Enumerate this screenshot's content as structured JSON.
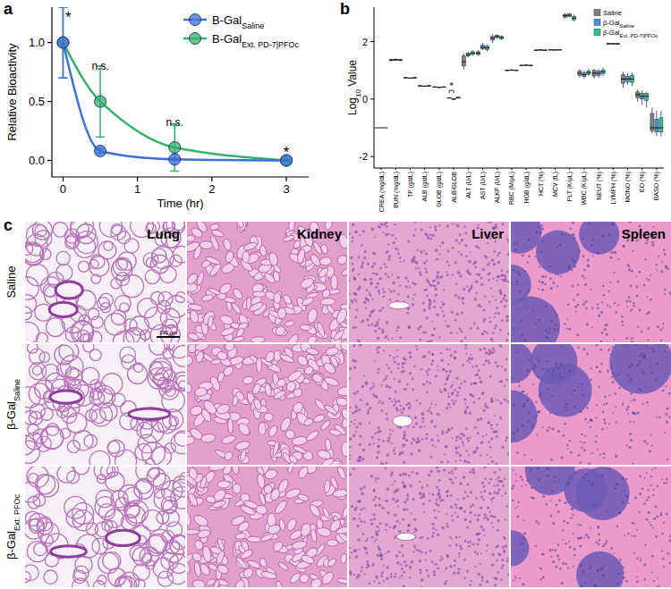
{
  "chart_data": [
    {
      "type": "line",
      "label": "a",
      "x_label": "Time (hr)",
      "y_label": "Relative Bioactivity",
      "xlim": [
        -0.15,
        3.3
      ],
      "xticks": [
        0,
        1,
        2,
        3
      ],
      "ylim": [
        -0.14,
        1.3
      ],
      "yticks": [
        {
          "value": 0,
          "label": "0.0"
        },
        {
          "value": 0.5,
          "label": "0.5"
        },
        {
          "value": 1,
          "label": "1.0"
        }
      ],
      "legend": "upper-right",
      "marker": "circle",
      "series": [
        {
          "name": "B-Gal",
          "name_sub": "Saline",
          "color": "#3f6fd8",
          "x": [
            0,
            0.5,
            1.5,
            3
          ],
          "values": [
            1,
            0.08,
            0.01,
            0
          ],
          "errors": [
            0.3,
            0.02,
            0.01,
            0
          ]
        },
        {
          "name": "B-Gal",
          "name_sub": "Ext. PD-7|PFOc",
          "color": "#33b26e",
          "x": [
            0,
            0.5,
            1.5,
            3
          ],
          "values": [
            1,
            0.5,
            0.11,
            0
          ],
          "errors": [
            0.3,
            0.3,
            0.2,
            0
          ]
        }
      ],
      "annotations": [
        {
          "x": 0.07,
          "y": 1.2,
          "text": "*"
        },
        {
          "x": 0.5,
          "y": 0.8,
          "text": "n.s."
        },
        {
          "x": 1.5,
          "y": 0.32,
          "text": "n.s."
        },
        {
          "x": 3,
          "y": 0.06,
          "text": "*"
        }
      ]
    },
    {
      "type": "box",
      "label": "b",
      "y_label_parts": [
        "Log",
        "10",
        " Value"
      ],
      "ylim": [
        -2.4,
        3.2
      ],
      "yticks": [
        -2,
        0,
        2
      ],
      "legend": "upper-right",
      "categories": [
        "CREA (mg/dL)",
        "BUN (mg/dL)",
        "TP (g/dL)",
        "ALB (g/dL)",
        "GLOB (g/dL)",
        "ALB/GLOB",
        "ALT (U/L)",
        "AST (U/L)",
        "ALKP (U/L)",
        "RBC (M/μL)",
        "HGB (g/dL)",
        "HCT (%)",
        "MCV (fL)",
        "PLT (K/μL)",
        "WBC (K/μL)",
        "NEUT (%)",
        "LYMPH (%)",
        "MONO (%)",
        "EO (%)",
        "BASO (%)"
      ],
      "series": [
        {
          "name": "Saline",
          "color": "#808080",
          "boxes": [
            [
              -1,
              -1,
              -1,
              -1,
              -1
            ],
            [
              1.32,
              1.34,
              1.36,
              1.38,
              1.4
            ],
            [
              0.72,
              0.73,
              0.74,
              0.75,
              0.76
            ],
            [
              0.44,
              0.45,
              0.46,
              0.47,
              0.48
            ],
            [
              0.4,
              0.41,
              0.42,
              0.43,
              0.44
            ],
            [
              0.02,
              0.03,
              0.04,
              0.05,
              0.07
            ],
            [
              1.05,
              1.15,
              1.3,
              1.5,
              1.6
            ],
            [
              1.5,
              1.55,
              1.6,
              1.65,
              1.7
            ],
            [
              1.95,
              2.05,
              2.12,
              2.18,
              2.25
            ],
            [
              0.98,
              0.99,
              1,
              1.01,
              1.02
            ],
            [
              1.15,
              1.16,
              1.17,
              1.18,
              1.19
            ],
            [
              1.68,
              1.69,
              1.7,
              1.71,
              1.72
            ],
            [
              1.7,
              1.71,
              1.71,
              1.72,
              1.72
            ],
            [
              2.8,
              2.85,
              2.9,
              2.95,
              3
            ],
            [
              0.75,
              0.82,
              0.9,
              0.98,
              1.05
            ],
            [
              0.7,
              0.8,
              0.9,
              1,
              1.05
            ],
            [
              1.9,
              1.91,
              1.93,
              1.94,
              1.95
            ],
            [
              0.4,
              0.55,
              0.7,
              0.85,
              0.95
            ],
            [
              -0.1,
              0.05,
              0.15,
              0.25,
              0.35
            ],
            [
              -1.2,
              -1.1,
              -1,
              -0.5,
              -0.3
            ]
          ]
        },
        {
          "name": "β-Gal",
          "name_sub": "Saline",
          "color": "#4a90e2",
          "boxes": [
            [
              -1,
              -1,
              -1,
              -1,
              -1
            ],
            [
              1.33,
              1.35,
              1.37,
              1.39,
              1.41
            ],
            [
              0.71,
              0.72,
              0.73,
              0.74,
              0.75
            ],
            [
              0.43,
              0.44,
              0.45,
              0.46,
              0.47
            ],
            [
              0.39,
              0.4,
              0.41,
              0.42,
              0.43
            ],
            [
              -0.02,
              -0.01,
              0,
              0.01,
              0.02
            ],
            [
              1.45,
              1.5,
              1.55,
              1.6,
              1.65
            ],
            [
              1.7,
              1.75,
              1.8,
              1.88,
              1.95
            ],
            [
              2.1,
              2.14,
              2.18,
              2.22,
              2.25
            ],
            [
              0.99,
              1,
              1.01,
              1.02,
              1.03
            ],
            [
              1.16,
              1.17,
              1.18,
              1.19,
              1.2
            ],
            [
              1.69,
              1.7,
              1.71,
              1.72,
              1.73
            ],
            [
              1.7,
              1.7,
              1.71,
              1.71,
              1.72
            ],
            [
              2.85,
              2.88,
              2.92,
              2.96,
              3
            ],
            [
              0.7,
              0.78,
              0.85,
              0.92,
              1
            ],
            [
              0.75,
              0.82,
              0.9,
              0.98,
              1.05
            ],
            [
              1.9,
              1.92,
              1.93,
              1.94,
              1.95
            ],
            [
              0.5,
              0.6,
              0.7,
              0.8,
              0.9
            ],
            [
              -0.2,
              0,
              0.1,
              0.2,
              0.3
            ],
            [
              -1.3,
              -1.15,
              -1,
              -0.7,
              -0.4
            ]
          ]
        },
        {
          "name": "β-Gal",
          "name_sub": "Ext. PD-7|PFOc",
          "color": "#2fc48a",
          "boxes": [
            [
              -1,
              -1,
              -1,
              -1,
              -1
            ],
            [
              1.32,
              1.34,
              1.36,
              1.38,
              1.4
            ],
            [
              0.72,
              0.73,
              0.74,
              0.75,
              0.76
            ],
            [
              0.44,
              0.45,
              0.46,
              0.47,
              0.48
            ],
            [
              0.4,
              0.41,
              0.42,
              0.43,
              0.44
            ],
            [
              0.02,
              0.03,
              0.05,
              0.06,
              0.08
            ],
            [
              1.5,
              1.55,
              1.6,
              1.65,
              1.7
            ],
            [
              1.65,
              1.72,
              1.78,
              1.85,
              1.9
            ],
            [
              2.05,
              2.1,
              2.14,
              2.18,
              2.22
            ],
            [
              0.98,
              0.99,
              1,
              1.01,
              1.02
            ],
            [
              1.15,
              1.16,
              1.17,
              1.18,
              1.19
            ],
            [
              1.68,
              1.69,
              1.7,
              1.71,
              1.72
            ],
            [
              1.7,
              1.71,
              1.71,
              1.72,
              1.73
            ],
            [
              2.7,
              2.76,
              2.82,
              2.88,
              2.95
            ],
            [
              0.8,
              0.86,
              0.92,
              0.98,
              1.05
            ],
            [
              0.8,
              0.88,
              0.95,
              1.02,
              1.1
            ],
            [
              1.9,
              1.91,
              1.92,
              1.94,
              1.95
            ],
            [
              0.45,
              0.58,
              0.7,
              0.82,
              0.9
            ],
            [
              -0.3,
              -0.05,
              0.1,
              0.2,
              0.25
            ],
            [
              -1.3,
              -1.15,
              -1,
              -0.65,
              -0.4
            ]
          ]
        }
      ],
      "annotations": [
        {
          "category": "ALB/GLOB",
          "series": [
            0,
            1
          ],
          "y": 0.3,
          "text": "*"
        }
      ]
    }
  ],
  "histology": {
    "label": "c",
    "columns": [
      "Lung",
      "Kidney",
      "Liver",
      "Spleen"
    ],
    "rows": [
      {
        "name": "Saline"
      },
      {
        "name": "β-Gal",
        "name_sub": "Saline"
      },
      {
        "name": "β-Gal",
        "name_sub": "Ext. PFOc"
      }
    ],
    "scale_bar": "100 µm"
  }
}
